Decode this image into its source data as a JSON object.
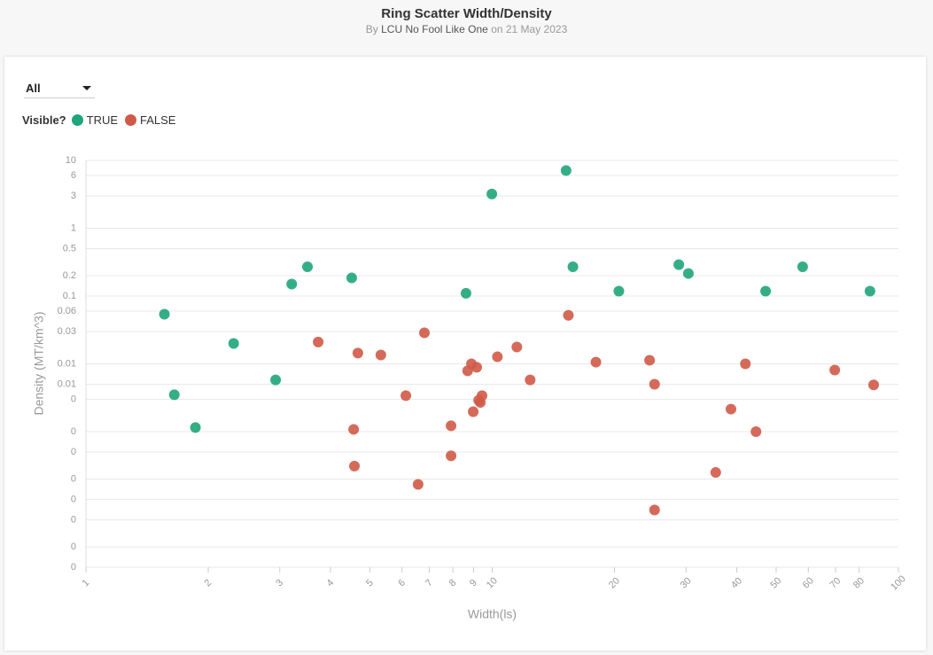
{
  "header": {
    "title": "Ring Scatter Width/Density",
    "by": "By",
    "author": "LCU No Fool Like One",
    "date": "on 21 May 2023"
  },
  "controls": {
    "filter": "All",
    "legend_title": "Visible?"
  },
  "chart_data": {
    "type": "scatter",
    "xscale": "log",
    "yscale": "log",
    "x_label": "Width(ls)",
    "y_label": "Density (MT/km^3)",
    "xlim": [
      1,
      100
    ],
    "ylim": [
      1e-05,
      10
    ],
    "xticks": [
      1,
      2,
      3,
      4,
      5,
      6,
      7,
      8,
      9,
      10,
      20,
      30,
      40,
      50,
      60,
      70,
      80,
      100
    ],
    "yticks": [
      10,
      6,
      3,
      1,
      0.5,
      0.2,
      0.1,
      0.06,
      0.03,
      0.01,
      {
        "value": 0.005,
        "label": "0.01"
      },
      {
        "value": 0.003,
        "label": "0"
      },
      {
        "value": 0.001,
        "label": "0"
      },
      {
        "value": 0.0005,
        "label": "0"
      },
      {
        "value": 0.0002,
        "label": "0"
      },
      {
        "value": 0.0001,
        "label": "0"
      },
      {
        "value": 5e-05,
        "label": "0"
      },
      {
        "value": 2e-05,
        "label": "0"
      },
      {
        "value": 1e-05,
        "label": "0"
      }
    ],
    "grid": true,
    "series": [
      {
        "name": "TRUE",
        "color": "#1fa57b",
        "x": [
          1.56,
          1.65,
          1.86,
          2.31,
          2.93,
          3.21,
          3.51,
          4.51,
          8.62,
          9.98,
          15.2,
          15.8,
          20.5,
          28.8,
          30.4,
          47.1,
          58.1,
          85.1
        ],
        "values": [
          0.054,
          0.0035,
          0.00115,
          0.02,
          0.0058,
          0.15,
          0.27,
          0.185,
          0.11,
          3.2,
          7.1,
          0.27,
          0.118,
          0.29,
          0.215,
          0.118,
          0.27,
          0.118
        ]
      },
      {
        "name": "FALSE",
        "color": "#d05a48",
        "x": [
          3.73,
          4.67,
          4.56,
          4.58,
          5.32,
          6.13,
          6.57,
          6.81,
          7.92,
          7.92,
          8.7,
          8.89,
          9.16,
          8.98,
          9.26,
          9.35,
          9.44,
          10.3,
          11.5,
          12.4,
          15.4,
          18.0,
          24.4,
          25.1,
          25.1,
          35.5,
          38.7,
          42.0,
          44.6,
          69.7,
          86.9
        ],
        "values": [
          0.021,
          0.0144,
          0.00108,
          0.00031,
          0.0135,
          0.0034,
          0.000167,
          0.0287,
          0.00122,
          0.00044,
          0.0079,
          0.01,
          0.0089,
          0.00197,
          0.0029,
          0.0027,
          0.0034,
          0.0127,
          0.0177,
          0.0058,
          0.052,
          0.0106,
          0.0113,
          0.005,
          7e-05,
          0.00025,
          0.00215,
          0.01,
          0.001,
          0.0081,
          0.0049
        ]
      }
    ]
  }
}
